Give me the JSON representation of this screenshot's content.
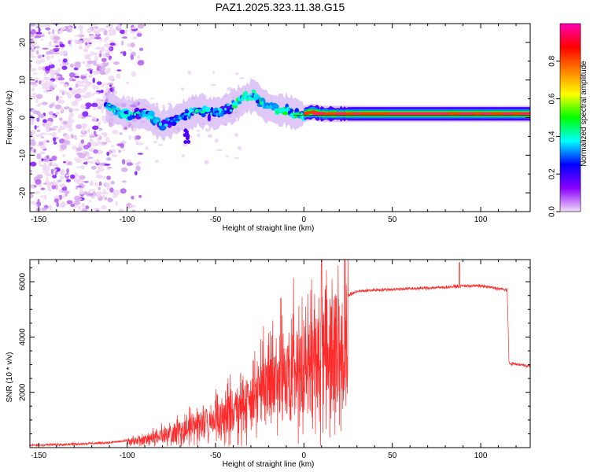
{
  "title": "PAZ1.2025.323.11.38.G15",
  "chart_data": [
    {
      "type": "heatmap",
      "name": "spectrogram",
      "xlabel": "Height of straight line (km)",
      "ylabel": "Frequency (Hz)",
      "xlim": [
        -155,
        128
      ],
      "ylim": [
        -25,
        25
      ],
      "xticks": [
        -150,
        -100,
        -50,
        0,
        50,
        100
      ],
      "yticks": [
        -20,
        -10,
        0,
        10,
        20
      ],
      "colorbar": {
        "label": "Normalized spectral amplitude",
        "range": [
          0,
          1
        ],
        "ticks": [
          0.0,
          0.2,
          0.4,
          0.6,
          0.8
        ],
        "tick_labels": [
          "0.0",
          "0.2",
          "0.4",
          "0.6",
          "0.8"
        ],
        "colors": [
          "#f2ddf5",
          "#8a00ff",
          "#0000ff",
          "#00ffff",
          "#00ff00",
          "#ffff00",
          "#ff7f00",
          "#ff0000",
          "#ff00b4"
        ]
      },
      "ridge": {
        "x": [
          -112,
          -100,
          -90,
          -80,
          -70,
          -60,
          -50,
          -40,
          -33,
          -28,
          -22,
          -15,
          -10,
          -5,
          0,
          5,
          10,
          20,
          30,
          50,
          80,
          100,
          128
        ],
        "freq": [
          3,
          1,
          1,
          -2,
          0,
          2,
          1,
          3,
          5,
          6,
          3,
          2,
          2,
          1,
          1,
          1.5,
          1,
          1,
          1,
          1,
          1,
          1,
          1
        ]
      },
      "noise_region": [
        -155,
        -92
      ]
    },
    {
      "type": "line",
      "name": "snr",
      "xlabel": "Height of straight line (km)",
      "ylabel": "SNR (10 * v/v)",
      "xlim": [
        -155,
        128
      ],
      "ylim": [
        0,
        6800
      ],
      "xticks": [
        -150,
        -100,
        -50,
        0,
        50,
        100
      ],
      "yticks": [
        2000,
        4000,
        6000
      ],
      "color": "#ff2a2a",
      "envelope": {
        "x": [
          -155,
          -130,
          -110,
          -100,
          -90,
          -80,
          -70,
          -60,
          -50,
          -40,
          -30,
          -20,
          -15,
          -10,
          -5,
          0,
          5,
          10,
          15,
          20,
          25,
          30,
          40,
          60,
          80,
          90,
          100,
          115,
          116,
          128
        ],
        "y": [
          80,
          130,
          180,
          250,
          380,
          550,
          800,
          1050,
          1300,
          1700,
          2200,
          2800,
          3000,
          3300,
          3600,
          3800,
          3900,
          4200,
          4800,
          5200,
          5500,
          5650,
          5700,
          5750,
          5800,
          5850,
          5850,
          5700,
          3050,
          2950
        ]
      },
      "spikes": [
        {
          "x": -13,
          "y": 5400
        },
        {
          "x": 10,
          "y": 6750
        },
        {
          "x": 88,
          "y": 6700
        }
      ]
    }
  ]
}
